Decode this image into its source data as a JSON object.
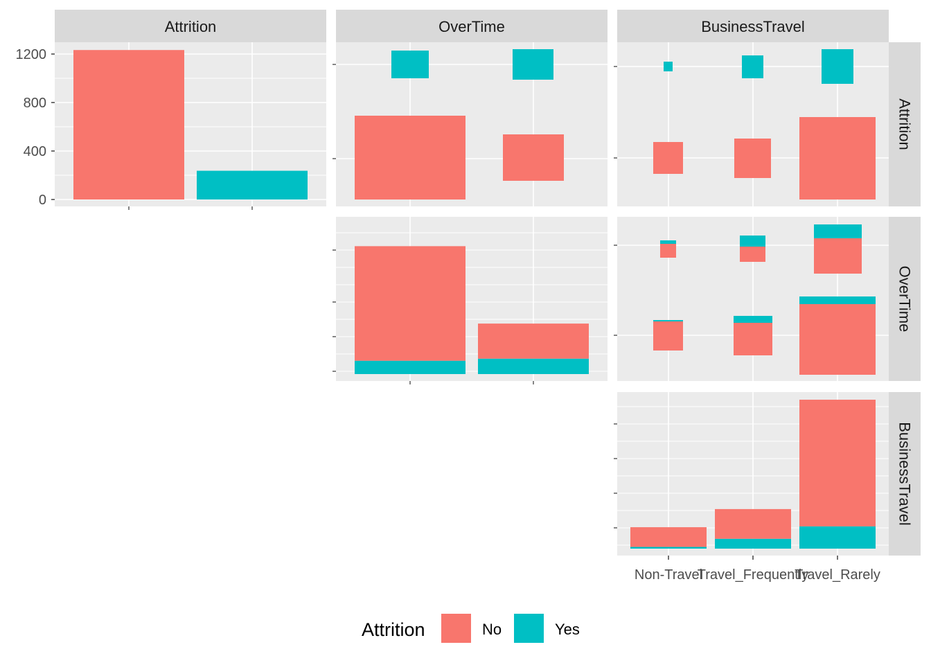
{
  "chart_data": {
    "type": "bar",
    "layout": "ggpairs-matrix",
    "variables": [
      "Attrition",
      "OverTime",
      "BusinessTravel"
    ],
    "fill_variable": "Attrition",
    "legend": {
      "title": "Attrition",
      "position": "bottom",
      "items": [
        {
          "label": "No",
          "color": "#F8766D"
        },
        {
          "label": "Yes",
          "color": "#00BFC4"
        }
      ]
    },
    "panels": [
      {
        "id": "attrition-marginal",
        "kind": "bar",
        "x_variable": "Attrition",
        "categories": [
          "No",
          "Yes"
        ],
        "series": [
          {
            "name": "No",
            "values": [
              1233,
              0
            ]
          },
          {
            "name": "Yes",
            "values": [
              0,
              237
            ]
          }
        ],
        "y_ticks": [
          0,
          400,
          800,
          1200
        ],
        "ylim": [
          0,
          1300
        ]
      },
      {
        "id": "overtime-vs-attrition",
        "kind": "box",
        "x_variable": "OverTime",
        "y_variable": "Attrition",
        "x_categories": [
          "No",
          "Yes"
        ],
        "y_categories": [
          "No",
          "Yes"
        ],
        "counts": {
          "No": {
            "No": 944,
            "Yes": 289
          },
          "Yes": {
            "No": 110,
            "Yes": 127
          }
        }
      },
      {
        "id": "businesstravel-vs-attrition",
        "kind": "box",
        "x_variable": "BusinessTravel",
        "y_variable": "Attrition",
        "x_categories": [
          "Non-Travel",
          "Travel_Frequently",
          "Travel_Rarely"
        ],
        "y_categories": [
          "No",
          "Yes"
        ],
        "counts": {
          "No": {
            "Non-Travel": 138,
            "Travel_Frequently": 208,
            "Travel_Rarely": 887
          },
          "Yes": {
            "Non-Travel": 12,
            "Travel_Frequently": 69,
            "Travel_Rarely": 156
          }
        }
      },
      {
        "id": "overtime-marginal",
        "kind": "bar",
        "x_variable": "OverTime",
        "categories": [
          "No",
          "Yes"
        ],
        "series": [
          {
            "name": "No",
            "values": [
              944,
              289
            ]
          },
          {
            "name": "Yes",
            "values": [
              110,
              127
            ]
          }
        ],
        "ylim": [
          0,
          1100
        ]
      },
      {
        "id": "businesstravel-vs-overtime",
        "kind": "box",
        "x_variable": "BusinessTravel",
        "y_variable": "OverTime",
        "x_categories": [
          "Non-Travel",
          "Travel_Frequently",
          "Travel_Rarely"
        ],
        "y_categories": [
          "No",
          "Yes"
        ],
        "stacked_by": "Attrition",
        "counts": {
          "OverTime=No": {
            "No": {
              "Non-Travel": 104,
              "Travel_Frequently": 148,
              "Travel_Rarely": 692
            },
            "Yes": {
              "Non-Travel": 4,
              "Travel_Frequently": 36,
              "Travel_Rarely": 70
            }
          },
          "OverTime=Yes": {
            "No": {
              "Non-Travel": 34,
              "Travel_Frequently": 60,
              "Travel_Rarely": 195
            },
            "Yes": {
              "Non-Travel": 8,
              "Travel_Frequently": 33,
              "Travel_Rarely": 86
            }
          }
        }
      },
      {
        "id": "businesstravel-marginal",
        "kind": "bar",
        "x_variable": "BusinessTravel",
        "categories": [
          "Non-Travel",
          "Travel_Frequently",
          "Travel_Rarely"
        ],
        "series": [
          {
            "name": "No",
            "values": [
              138,
              208,
              887
            ]
          },
          {
            "name": "Yes",
            "values": [
              12,
              69,
              156
            ]
          }
        ],
        "ylim": [
          0,
          1100
        ]
      }
    ],
    "x_tick_labels": [
      "Non-Travel",
      "Travel_Frequently",
      "Travel_Rarely"
    ],
    "y_tick_labels": [
      "0",
      "400",
      "800",
      "1200"
    ]
  }
}
